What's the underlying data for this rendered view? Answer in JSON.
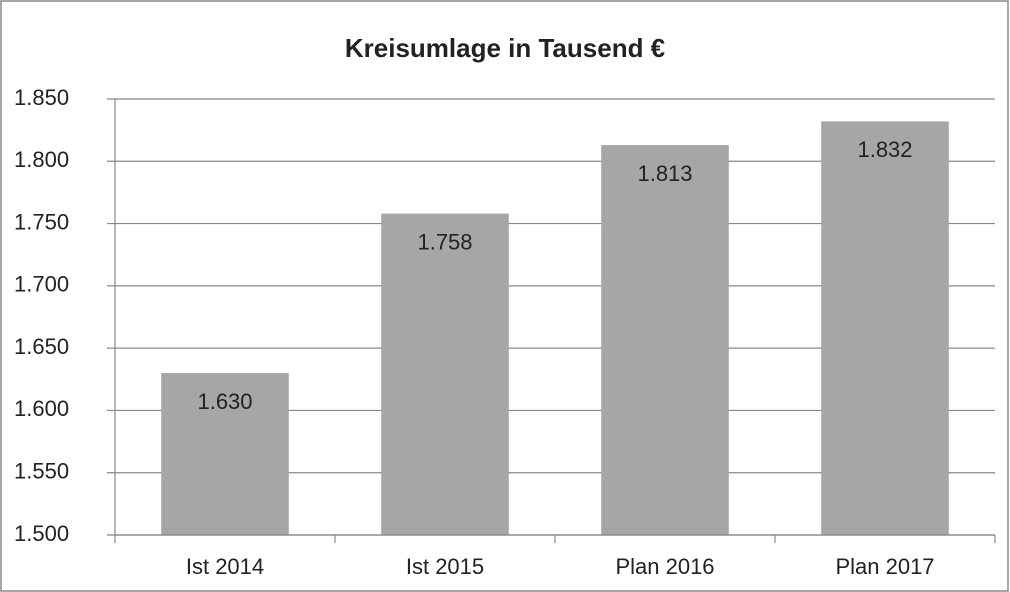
{
  "chart_data": {
    "type": "bar",
    "title": "Kreisumlage in Tausend €",
    "categories": [
      "Ist 2014",
      "Ist 2015",
      "Plan 2016",
      "Plan 2017"
    ],
    "values": [
      1630,
      1758,
      1813,
      1832
    ],
    "value_labels": [
      "1.630",
      "1.758",
      "1.813",
      "1.832"
    ],
    "color": "#a6a6a6",
    "ylim": [
      1500,
      1850
    ],
    "yticks": [
      {
        "value": 1500,
        "label": "1.500"
      },
      {
        "value": 1550,
        "label": "1.550"
      },
      {
        "value": 1600,
        "label": "1.600"
      },
      {
        "value": 1650,
        "label": "1.650"
      },
      {
        "value": 1700,
        "label": "1.700"
      },
      {
        "value": 1750,
        "label": "1.750"
      },
      {
        "value": 1800,
        "label": "1.800"
      },
      {
        "value": 1850,
        "label": "1.850"
      }
    ],
    "grid": true
  }
}
